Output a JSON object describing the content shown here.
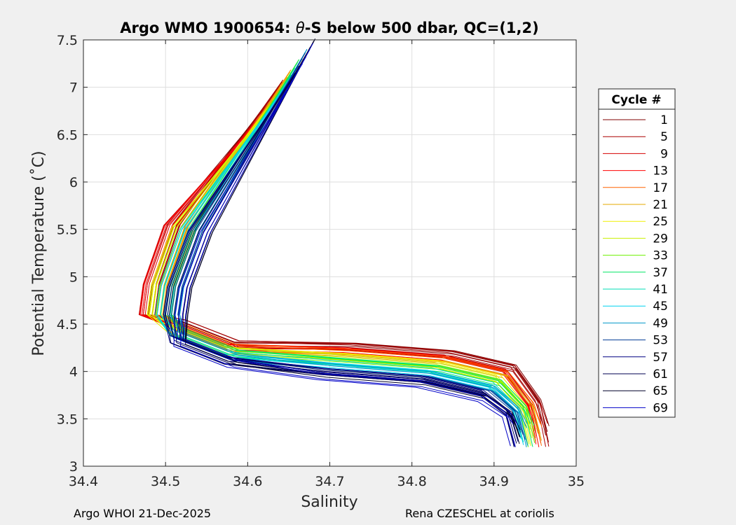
{
  "chart_data": {
    "type": "line",
    "title_prefix": "Argo WMO 1900654: ",
    "title_theta": "θ",
    "title_suffix": "-S below 500 dbar,  QC=(1,2)",
    "xlabel": "Salinity",
    "ylabel": "Potential Temperature (˚C)",
    "xlim": [
      34.4,
      35
    ],
    "ylim": [
      3,
      7.5
    ],
    "xticks": [
      "34.4",
      "34.5",
      "34.6",
      "34.7",
      "34.8",
      "34.9",
      "35"
    ],
    "yticks": [
      "3",
      "3.5",
      "4",
      "4.5",
      "5",
      "5.5",
      "6",
      "6.5",
      "7",
      "7.5"
    ],
    "grid": true,
    "legend": {
      "title": "Cycle #",
      "placement": "right",
      "entries": [
        "1",
        "5",
        "9",
        "13",
        "17",
        "21",
        "25",
        "29",
        "33",
        "37",
        "41",
        "45",
        "49",
        "53",
        "57",
        "61",
        "65",
        "69"
      ],
      "colors": [
        "#800000",
        "#aa0000",
        "#d40000",
        "#ff0000",
        "#ff6400",
        "#e6a800",
        "#f0f000",
        "#c8f000",
        "#6ef000",
        "#00e664",
        "#00dcb4",
        "#00d2f0",
        "#0096c8",
        "#003c96",
        "#000082",
        "#000050",
        "#000028",
        "#0000c8"
      ]
    },
    "series_profile": {
      "note_salinity": [
        34.655,
        34.53,
        34.505,
        34.5,
        34.515,
        34.58,
        34.7,
        34.82,
        34.895,
        34.925,
        34.935
      ],
      "theta": [
        7.15,
        5.5,
        4.9,
        4.6,
        4.4,
        4.18,
        4.08,
        4.0,
        3.85,
        3.6,
        3.25
      ]
    }
  },
  "footer": {
    "left": "Argo WHOI 21-Dec-2025",
    "right": "Rena CZESCHEL at coriolis"
  }
}
